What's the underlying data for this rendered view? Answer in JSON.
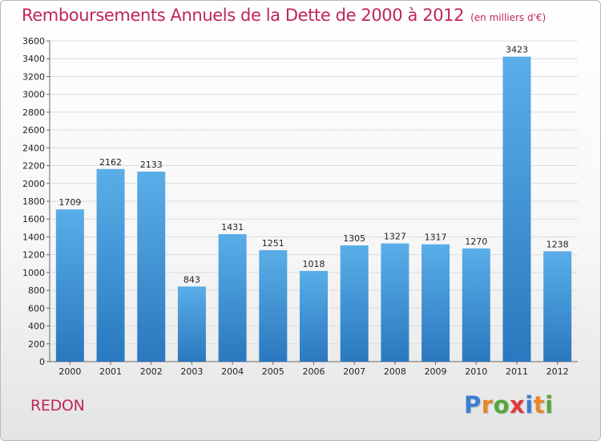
{
  "header": {
    "title": "Remboursements Annuels de la Dette de 2000 à 2012",
    "unit": "(en milliers d'€)"
  },
  "footer": {
    "city": "REDON",
    "logo_letters": [
      {
        "ch": "P",
        "color": "#3b7fd0"
      },
      {
        "ch": "r",
        "color": "#e7862a"
      },
      {
        "ch": "o",
        "color": "#55a63c"
      },
      {
        "ch": "x",
        "color": "#e03a3a"
      },
      {
        "ch": "i",
        "color": "#3b7fd0"
      },
      {
        "ch": "t",
        "color": "#e7862a"
      },
      {
        "ch": "i",
        "color": "#55a63c"
      }
    ]
  },
  "colors": {
    "bar_top": "#5aaee8",
    "bar_bottom": "#2a78bf",
    "accent": "#c0245e",
    "grid": "#dcdcdc"
  },
  "chart_data": {
    "type": "bar",
    "categories": [
      "2000",
      "2001",
      "2002",
      "2003",
      "2004",
      "2005",
      "2006",
      "2007",
      "2008",
      "2009",
      "2010",
      "2011",
      "2012"
    ],
    "values": [
      1709,
      2162,
      2133,
      843,
      1431,
      1251,
      1018,
      1305,
      1327,
      1317,
      1270,
      3423,
      1238
    ],
    "ylim": [
      0,
      3600
    ],
    "yticks": [
      0,
      200,
      400,
      600,
      800,
      1000,
      1200,
      1400,
      1600,
      1800,
      2000,
      2200,
      2400,
      2600,
      2800,
      3000,
      3200,
      3400,
      3600
    ],
    "grid": true,
    "legend": "none"
  }
}
